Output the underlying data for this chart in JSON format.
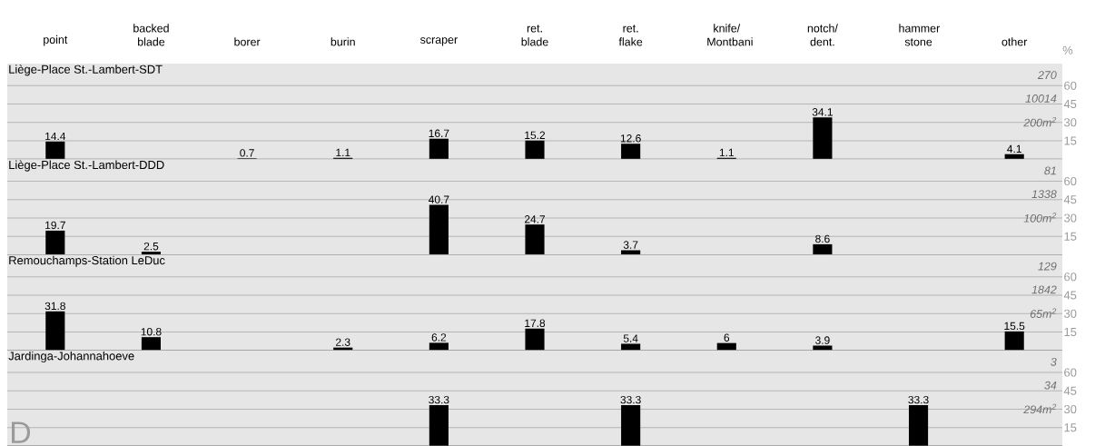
{
  "chart_data": [
    {
      "type": "bar",
      "title": "Liège-Place St.-Lambert-SDT",
      "ylabel": "%",
      "annotations": [
        "270",
        "10014",
        "200m$^{2}$"
      ],
      "categories": [
        "point",
        "backed blade",
        "borer",
        "burin",
        "scraper",
        "ret. blade",
        "ret. flake",
        "knife/ Montbani",
        "notch/ dent.",
        "hammer stone",
        "other"
      ],
      "values": [
        14.4,
        null,
        0.7,
        1.1,
        16.7,
        15.2,
        12.6,
        1.1,
        34.1,
        null,
        4.1
      ],
      "color": "#000000",
      "data_labels": true,
      "ylim": [
        0,
        78
      ],
      "yticks": [
        15,
        30,
        45,
        60
      ],
      "grid": "y"
    },
    {
      "type": "bar",
      "title": "Liège-Place St.-Lambert-DDD",
      "annotations": [
        "81",
        "1338",
        "100m$^{2}$"
      ],
      "categories": [
        null,
        null,
        null,
        null,
        null,
        null,
        null,
        null,
        null,
        null,
        null
      ],
      "values": [
        19.7,
        2.5,
        null,
        null,
        40.7,
        24.7,
        3.7,
        null,
        8.6,
        null,
        null
      ],
      "color": "#000000",
      "data_labels": true,
      "ylim": [
        0,
        78
      ],
      "yticks": [
        15,
        30,
        45,
        60
      ],
      "grid": "y",
      "tick_labels": "y"
    },
    {
      "type": "bar",
      "title": "Remouchamps-Station LeDuc",
      "annotations": [
        "129",
        "1842",
        "65m$^{2}$"
      ],
      "categories": [
        null,
        null,
        null,
        null,
        null,
        null,
        null,
        null,
        null,
        null,
        null
      ],
      "values": [
        31.8,
        10.8,
        null,
        2.3,
        6.2,
        17.8,
        5.4,
        6,
        3.9,
        null,
        15.5
      ],
      "color": "#000000",
      "data_labels": true,
      "ylim": [
        0,
        78
      ],
      "yticks": [
        15,
        30,
        45,
        60
      ],
      "grid": "y",
      "tick_labels": "y"
    },
    {
      "type": "bar",
      "title": "Jardinga-Johannahoeve",
      "annotations": [
        "3",
        "34",
        "294m$^{2}$",
        "D"
      ],
      "categories": [
        null,
        null,
        null,
        null,
        null,
        null,
        null,
        null,
        null,
        null,
        null
      ],
      "values": [
        null,
        null,
        null,
        null,
        33.3,
        null,
        33.3,
        null,
        null,
        33.3,
        null
      ],
      "color": "#000000",
      "data_labels": true,
      "ylim": [
        0,
        78
      ],
      "yticks": [
        15,
        30,
        45,
        60
      ],
      "grid": "y",
      "tick_labels": "y"
    }
  ]
}
